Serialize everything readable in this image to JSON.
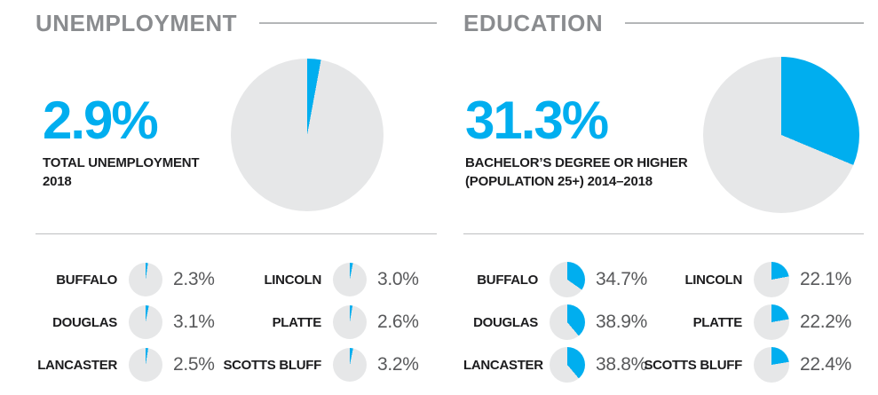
{
  "colors": {
    "accent": "#00AEEF",
    "pie_base": "#E6E7E8",
    "title_gray": "#8A8C8F",
    "rule_gray": "#B4B6B8",
    "divider_gray": "#BDBFC1",
    "text_dark": "#1C1C1E",
    "value_gray": "#58595B",
    "background": "#FFFFFF"
  },
  "sections": [
    {
      "id": "unemployment",
      "title": "UNEMPLOYMENT",
      "stat": {
        "value": "2.9%",
        "pct": 2.9,
        "label_line1": "TOTAL UNEMPLOYMENT",
        "label_line2": "2018"
      },
      "counties": [
        {
          "name": "BUFFALO",
          "value": "2.3%",
          "pct": 2.3
        },
        {
          "name": "DOUGLAS",
          "value": "3.1%",
          "pct": 3.1
        },
        {
          "name": "LANCASTER",
          "value": "2.5%",
          "pct": 2.5
        },
        {
          "name": "LINCOLN",
          "value": "3.0%",
          "pct": 3.0
        },
        {
          "name": "PLATTE",
          "value": "2.6%",
          "pct": 2.6
        },
        {
          "name": "SCOTTS BLUFF",
          "value": "3.2%",
          "pct": 3.2
        }
      ]
    },
    {
      "id": "education",
      "title": "EDUCATION",
      "stat": {
        "value": "31.3%",
        "pct": 31.3,
        "label_line1": "BACHELOR’S DEGREE OR HIGHER",
        "label_line2": "(POPULATION 25+) 2014–2018"
      },
      "counties": [
        {
          "name": "BUFFALO",
          "value": "34.7%",
          "pct": 34.7
        },
        {
          "name": "DOUGLAS",
          "value": "38.9%",
          "pct": 38.9
        },
        {
          "name": "LANCASTER",
          "value": "38.8%",
          "pct": 38.8
        },
        {
          "name": "LINCOLN",
          "value": "22.1%",
          "pct": 22.1
        },
        {
          "name": "PLATTE",
          "value": "22.2%",
          "pct": 22.2
        },
        {
          "name": "SCOTTS BLUFF",
          "value": "22.4%",
          "pct": 22.4
        }
      ]
    }
  ],
  "chart_data": [
    {
      "type": "pie",
      "title": "UNEMPLOYMENT",
      "subtitle": "TOTAL UNEMPLOYMENT 2018",
      "unit": "%",
      "main_pie": {
        "labels": [
          "Total unemployment",
          "Remainder"
        ],
        "values": [
          2.9,
          97.1
        ]
      },
      "county_pies": {
        "BUFFALO": 2.3,
        "DOUGLAS": 3.1,
        "LANCASTER": 2.5,
        "LINCOLN": 3.0,
        "PLATTE": 2.6,
        "SCOTTS BLUFF": 3.2
      },
      "slice_color": "#00AEEF",
      "base_color": "#E6E7E8",
      "start_angle": "12 o'clock, clockwise"
    },
    {
      "type": "pie",
      "title": "EDUCATION",
      "subtitle": "BACHELOR’S DEGREE OR HIGHER (POPULATION 25+) 2014–2018",
      "unit": "%",
      "main_pie": {
        "labels": [
          "Bachelor’s degree or higher",
          "Remainder"
        ],
        "values": [
          31.3,
          68.7
        ]
      },
      "county_pies": {
        "BUFFALO": 34.7,
        "DOUGLAS": 38.9,
        "LANCASTER": 38.8,
        "LINCOLN": 22.1,
        "PLATTE": 22.2,
        "SCOTTS BLUFF": 22.4
      },
      "slice_color": "#00AEEF",
      "base_color": "#E6E7E8",
      "start_angle": "12 o'clock, clockwise"
    }
  ]
}
